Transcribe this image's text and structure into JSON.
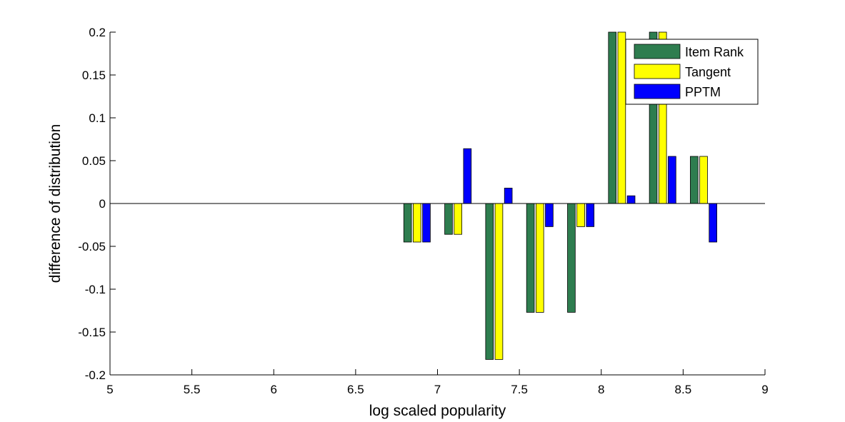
{
  "chart_data": {
    "type": "bar",
    "title": "",
    "xlabel": "log scaled popularity",
    "ylabel": "difference of distribution",
    "xlim": [
      5,
      9
    ],
    "ylim": [
      -0.2,
      0.2
    ],
    "xticks": [
      "5",
      "5.5",
      "6",
      "6.5",
      "7",
      "7.5",
      "8",
      "8.5",
      "9"
    ],
    "yticks": [
      "-0.2",
      "-0.15",
      "-0.1",
      "-0.05",
      "0",
      "0.05",
      "0.1",
      "0.15",
      "0.2"
    ],
    "categories": [
      6.875,
      7.125,
      7.375,
      7.625,
      7.875,
      8.125,
      8.375,
      8.625
    ],
    "series": [
      {
        "name": "Item Rank",
        "color": "#2e7d4f",
        "values": [
          -0.045,
          -0.036,
          -0.182,
          -0.127,
          -0.127,
          0.2,
          0.2,
          0.055
        ]
      },
      {
        "name": "Tangent",
        "color": "#ffff00",
        "values": [
          -0.045,
          -0.036,
          -0.182,
          -0.127,
          -0.027,
          0.2,
          0.2,
          0.055
        ]
      },
      {
        "name": "PPTM",
        "color": "#0000ff",
        "values": [
          -0.045,
          0.064,
          0.018,
          -0.027,
          -0.027,
          0.009,
          0.055,
          -0.045
        ]
      }
    ],
    "grid": false,
    "legend": "top-right"
  }
}
